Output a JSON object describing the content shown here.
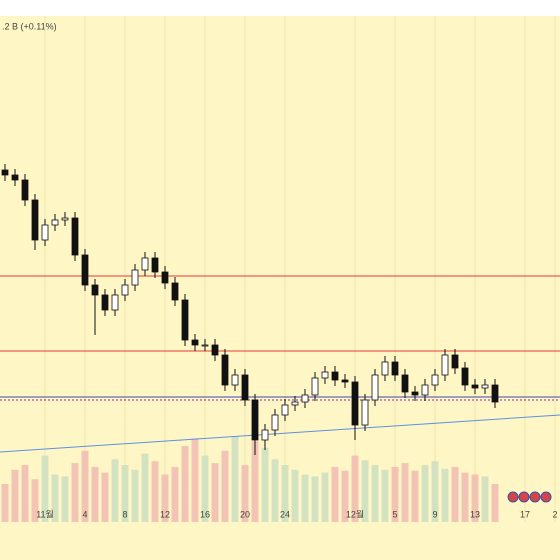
{
  "chart_data": {
    "type": "candlestick",
    "header": ".2 B (+0.11%)",
    "categories": [
      null,
      null,
      null,
      null,
      "11월",
      null,
      null,
      null,
      "4",
      null,
      null,
      null,
      "8",
      null,
      null,
      null,
      "12",
      null,
      null,
      null,
      "16",
      null,
      null,
      null,
      "20",
      null,
      null,
      null,
      "24",
      null,
      null,
      null,
      null,
      null,
      null,
      "12월",
      null,
      null,
      null,
      "5",
      null,
      null,
      null,
      "9",
      null,
      null,
      null,
      "13",
      null,
      null,
      null,
      null,
      "17",
      null,
      null,
      "2"
    ],
    "open": [
      390,
      385,
      380,
      360,
      320,
      335,
      340,
      342,
      305,
      275,
      265,
      250,
      265,
      275,
      290,
      302,
      288,
      277,
      260,
      220,
      215,
      215,
      205,
      175,
      185,
      160,
      120,
      130,
      145,
      155,
      158,
      165,
      182,
      188,
      180,
      178,
      135,
      160,
      185,
      198,
      185,
      168,
      165,
      175,
      185,
      205,
      192,
      175,
      172,
      175,
      null,
      null,
      null,
      null,
      null,
      null
    ],
    "high": [
      396,
      391,
      386,
      366,
      341,
      346,
      348,
      348,
      311,
      281,
      271,
      271,
      281,
      296,
      308,
      308,
      294,
      283,
      266,
      226,
      221,
      221,
      211,
      191,
      191,
      166,
      136,
      151,
      161,
      164,
      171,
      188,
      194,
      194,
      186,
      184,
      166,
      191,
      204,
      204,
      191,
      174,
      181,
      191,
      211,
      211,
      198,
      181,
      181,
      181,
      null,
      null,
      null,
      null,
      null,
      null
    ],
    "low": [
      379,
      374,
      354,
      310,
      314,
      329,
      334,
      299,
      269,
      225,
      244,
      244,
      259,
      269,
      284,
      282,
      271,
      254,
      214,
      209,
      209,
      199,
      169,
      169,
      154,
      105,
      110,
      124,
      139,
      149,
      152,
      159,
      176,
      174,
      172,
      120,
      129,
      154,
      179,
      179,
      162,
      159,
      159,
      169,
      179,
      186,
      169,
      166,
      166,
      152,
      null,
      null,
      null,
      null,
      null,
      null
    ],
    "close": [
      385,
      380,
      360,
      320,
      335,
      340,
      342,
      305,
      275,
      265,
      250,
      265,
      275,
      290,
      302,
      288,
      277,
      260,
      220,
      215,
      215,
      205,
      175,
      185,
      160,
      120,
      130,
      145,
      155,
      158,
      165,
      182,
      188,
      180,
      178,
      135,
      160,
      185,
      198,
      185,
      168,
      165,
      175,
      185,
      205,
      192,
      175,
      172,
      175,
      158,
      null,
      null,
      null,
      null,
      null,
      null
    ],
    "volume": [
      40,
      55,
      60,
      45,
      70,
      50,
      48,
      62,
      75,
      58,
      52,
      66,
      60,
      55,
      72,
      64,
      50,
      58,
      80,
      88,
      70,
      62,
      75,
      90,
      60,
      85,
      78,
      66,
      60,
      55,
      50,
      48,
      52,
      58,
      54,
      70,
      65,
      60,
      55,
      58,
      62,
      54,
      60,
      64,
      56,
      58,
      52,
      50,
      48,
      40,
      null,
      null,
      null,
      null,
      null,
      null
    ],
    "volume_lim": [
      0,
      100
    ],
    "ylim": [
      0,
      560
    ],
    "up_color": "#ffffff",
    "down_color": "#111111",
    "levels": [
      {
        "value": 284,
        "color": "#e53935",
        "style": "solid"
      },
      {
        "value": 209,
        "color": "#e53935",
        "style": "solid"
      },
      {
        "value": 163,
        "color": "#3949ab",
        "style": "solid"
      },
      {
        "value": 160,
        "color": "#8e24aa",
        "style": "dotted"
      }
    ],
    "trendline": {
      "start": 108,
      "end": 145,
      "color": "#5c8fe0"
    }
  }
}
